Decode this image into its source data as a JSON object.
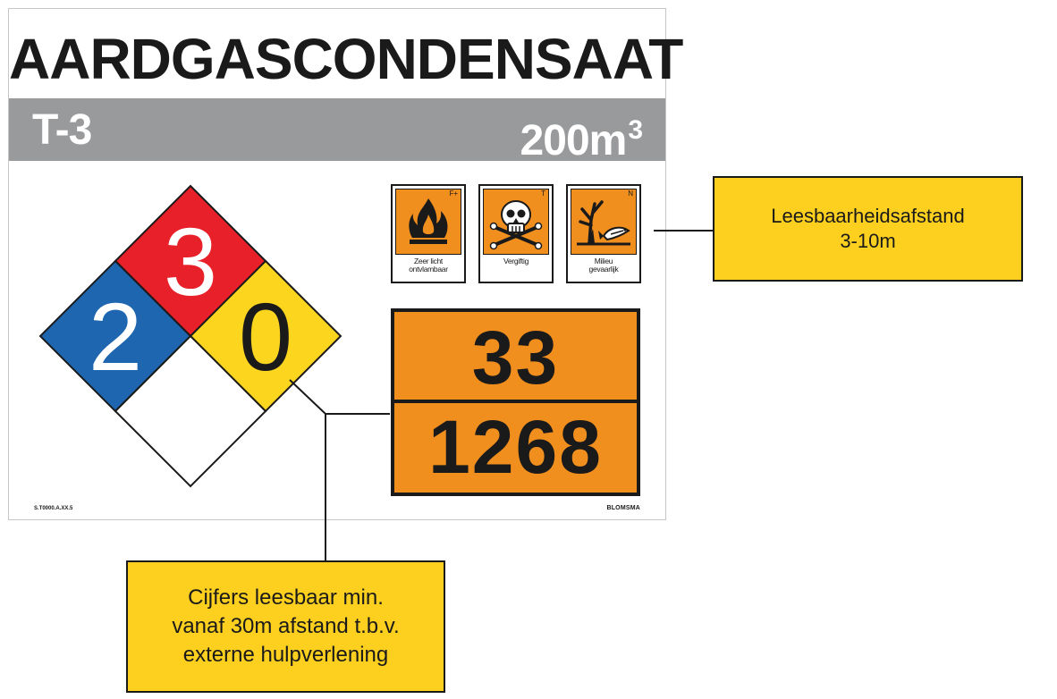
{
  "sign": {
    "title": "AARDGASCONDENSAAT",
    "tank_id": "T-3",
    "volume_value": "200m",
    "volume_unit_sup": "3",
    "nfpa": {
      "health": "2",
      "flammability": "3",
      "instability": "0",
      "special": "",
      "colors": {
        "health": "#1f66b1",
        "flammability": "#e8202a",
        "instability": "#fcd51f",
        "special": "#ffffff"
      }
    },
    "ghs_symbols": [
      {
        "code": "F+",
        "caption_line1": "Zeer licht",
        "caption_line2": "ontvlambaar",
        "icon": "flame-icon"
      },
      {
        "code": "T",
        "caption_line1": "Vergiftig",
        "caption_line2": "",
        "icon": "skull-crossbones-icon"
      },
      {
        "code": "N",
        "caption_line1": "Milieu",
        "caption_line2": "gevaarlijk",
        "icon": "dead-tree-fish-icon"
      }
    ],
    "adr_plate": {
      "hazard_number": "33",
      "un_number": "1268",
      "color": "#f18f1e"
    },
    "product_code": "S.T0000.A.XX.5",
    "brand": "BLOMSMA"
  },
  "callouts": {
    "readability_distance": "Leesbaarheidsafstand\n3-10m",
    "digits_readable": "Cijfers leesbaar min.\nvanaf 30m afstand t.b.v.\nexterne hulpverlening"
  },
  "colors": {
    "callout_bg": "#fdd01f",
    "band_gray": "#999a9c",
    "adr_orange": "#f18f1e"
  }
}
